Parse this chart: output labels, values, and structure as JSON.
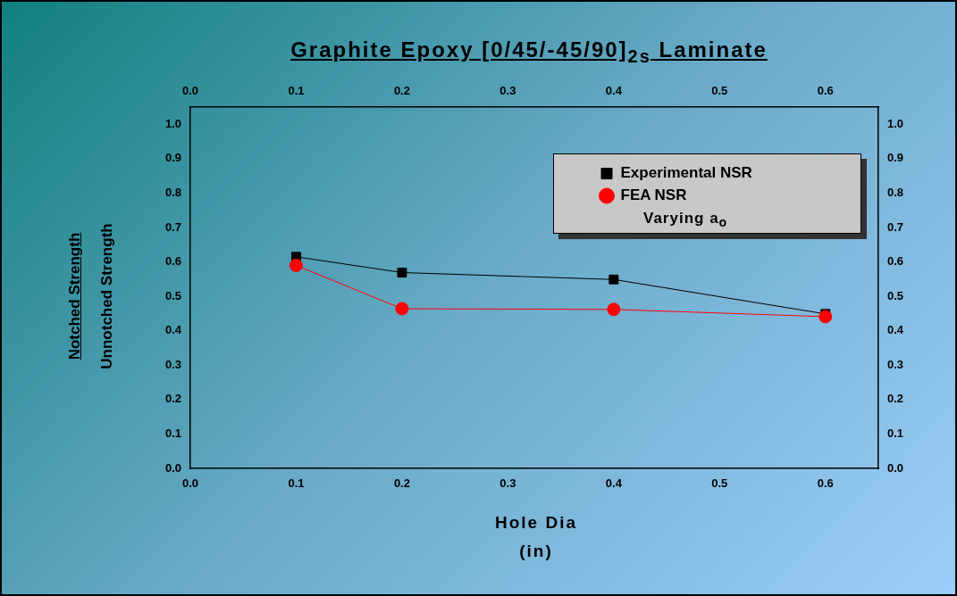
{
  "chart_data": {
    "type": "line",
    "title": "Graphite Epoxy [0/45/-45/90]$_{2s}$ Laminate",
    "xlabel": "Hole Dia\n(in)",
    "ylabel": "Notched Strength\nUnnotched Strength",
    "annotations": [
      "Varying a$_{o}$"
    ],
    "x": [
      0.1,
      0.2,
      0.4,
      0.6
    ],
    "series": [
      {
        "name": "Experimental NSR",
        "color": "#000000",
        "marker": "square",
        "values": [
          0.615,
          0.569,
          0.549,
          0.449
        ]
      },
      {
        "name": "FEA NSR",
        "color": "#ff0000",
        "marker": "circle",
        "values": [
          0.59,
          0.464,
          0.462,
          0.441
        ]
      }
    ],
    "xlim": [
      0,
      0.65
    ],
    "xticks": [
      {
        "value": 0,
        "label": "0.0"
      },
      0.1,
      0.2,
      0.3,
      0.4,
      0.5,
      0.6
    ],
    "x2lim": [
      0,
      0.65
    ],
    "x2ticks": [
      {
        "value": 0,
        "label": "0.0"
      },
      0.1,
      0.2,
      0.3,
      0.4,
      0.5,
      0.6
    ],
    "ylim": [
      0,
      1.05
    ],
    "yticks": [
      {
        "value": 0,
        "label": "0.0"
      },
      0.1,
      0.2,
      0.3,
      0.4,
      0.5,
      0.6,
      0.7,
      0.8,
      0.9,
      {
        "value": 1,
        "label": "1.0"
      }
    ],
    "y2lim": [
      0,
      1.05
    ],
    "y2ticks": [
      {
        "value": 0,
        "label": "0.0"
      },
      0.1,
      0.2,
      0.3,
      0.4,
      0.5,
      0.6,
      0.7,
      0.8,
      0.9,
      {
        "value": 1,
        "label": "1.0"
      }
    ],
    "grid": false,
    "legend": "top right",
    "line_style": "solid"
  }
}
